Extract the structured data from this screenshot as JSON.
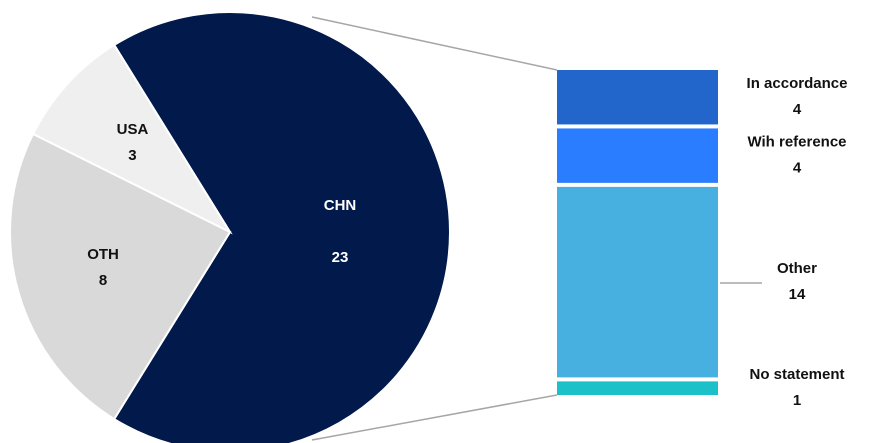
{
  "chart_data": [
    {
      "type": "pie",
      "categories": [
        "CHN",
        "OTH",
        "USA"
      ],
      "values": [
        23,
        8,
        3
      ],
      "colors": [
        "#021a4b",
        "#d9d9d9",
        "#efefef"
      ]
    },
    {
      "type": "bar",
      "categories": [
        "In accordance",
        "Wih reference",
        "Other",
        "No statement"
      ],
      "values": [
        4,
        4,
        14,
        1
      ],
      "colors": [
        "#2266cc",
        "#2a7dff",
        "#48b0e0",
        "#1cc0c8"
      ]
    }
  ]
}
